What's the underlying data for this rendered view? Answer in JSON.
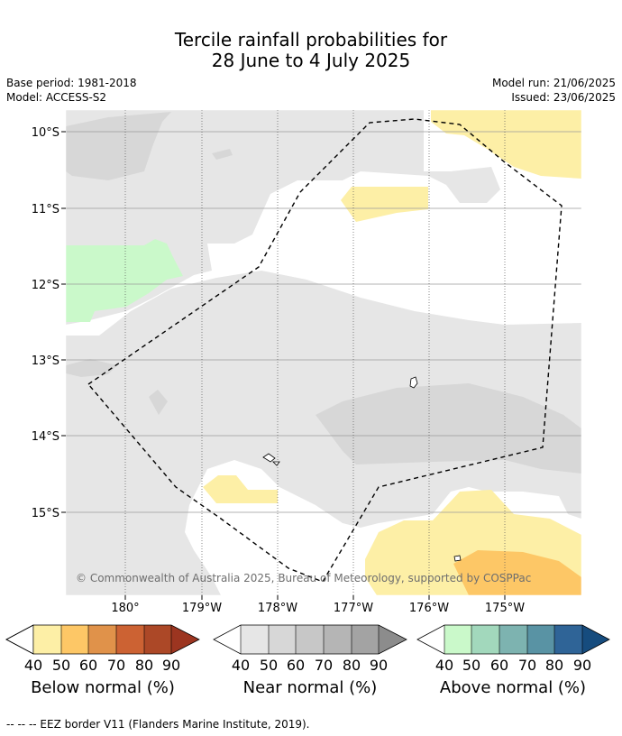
{
  "title_line1": "Tercile rainfall probabilities for",
  "title_line2": "28 June to 4 July 2025",
  "left_meta": {
    "base_period": "Base period: 1981-2018",
    "model": "Model: ACCESS-S2"
  },
  "right_meta": {
    "model_run": "Model run: 21/06/2025",
    "issued": "Issued: 23/06/2025"
  },
  "lat_labels": [
    "10°S",
    "11°S",
    "12°S",
    "13°S",
    "14°S",
    "15°S"
  ],
  "lon_labels": [
    "180°",
    "179°W",
    "178°W",
    "177°W",
    "176°W",
    "175°W"
  ],
  "credit": "© Commonwealth of Australia 2025, Bureau of Meteorology, supported by COSPPac",
  "colorbars": [
    {
      "label": "Below normal (%)",
      "ticks": [
        "40",
        "50",
        "60",
        "70",
        "80",
        "90"
      ],
      "colors": [
        "#fdefa6",
        "#fdc766",
        "#e0924a",
        "#cc6233",
        "#ac4827",
        "#9c3520"
      ]
    },
    {
      "label": "Near normal (%)",
      "ticks": [
        "40",
        "50",
        "60",
        "70",
        "80",
        "90"
      ],
      "colors": [
        "#e6e6e6",
        "#d7d7d7",
        "#c7c7c7",
        "#b5b5b5",
        "#a3a3a3",
        "#8c8c8c"
      ]
    },
    {
      "label": "Above normal (%)",
      "ticks": [
        "40",
        "50",
        "60",
        "70",
        "80",
        "90"
      ],
      "colors": [
        "#caf9ca",
        "#a2d8bc",
        "#7db3b0",
        "#5993a4",
        "#2f6497",
        "#164c7e"
      ]
    }
  ],
  "footer": "--  --  -- EEZ border V11 (Flanders Marine Institute, 2019).",
  "colors": {
    "near_light": "#e6e6e6",
    "near_mid": "#d7d7d7",
    "below_light": "#fdefa6",
    "below_mid": "#fdc766",
    "above_light": "#caf9ca"
  }
}
